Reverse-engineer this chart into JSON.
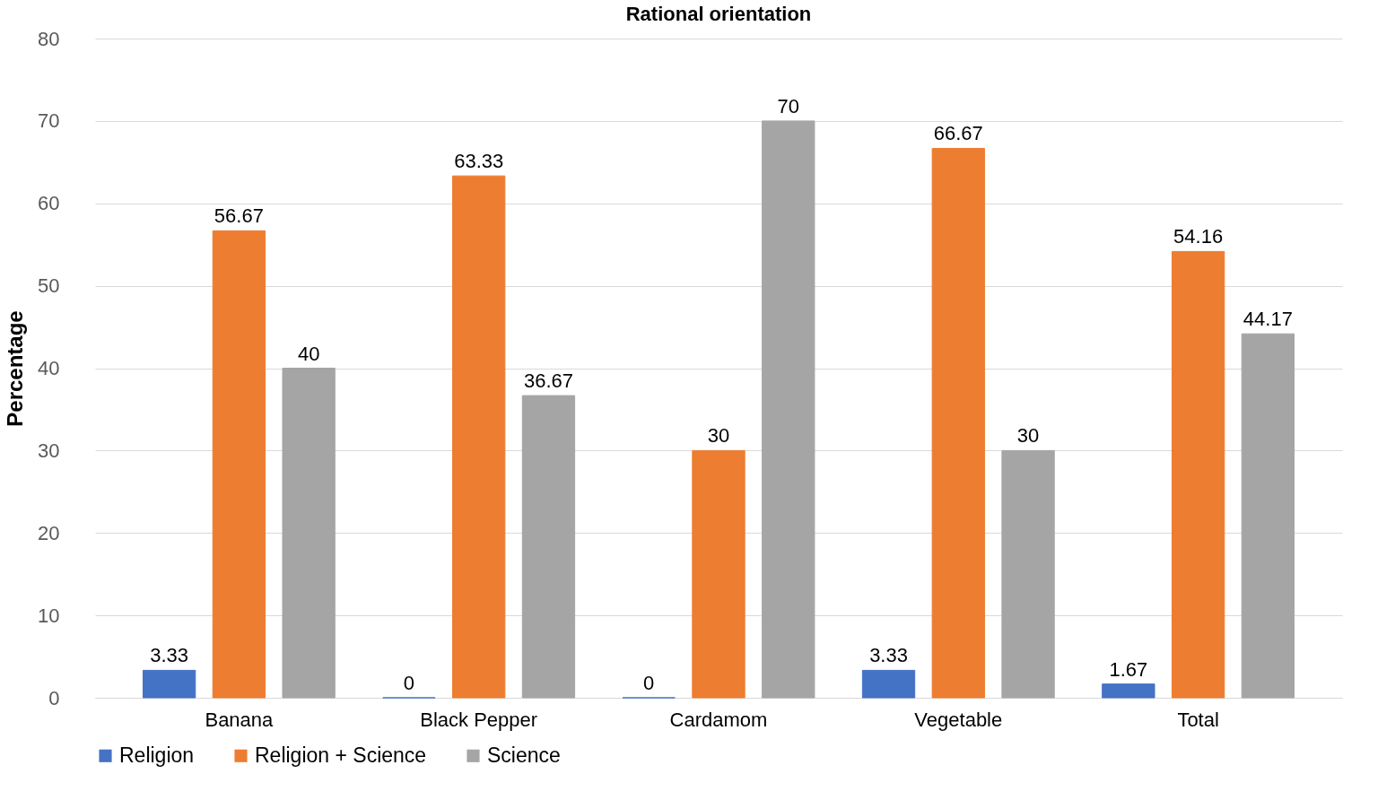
{
  "chart_data": {
    "type": "bar",
    "title": "Rational orientation",
    "ylabel": "Percentage",
    "categories": [
      "Banana",
      "Black Pepper",
      "Cardamom",
      "Vegetable",
      "Total"
    ],
    "series": [
      {
        "name": "Religion",
        "color": "#4472c4",
        "values": [
          3.33,
          0,
          0,
          3.33,
          1.67
        ]
      },
      {
        "name": "Religion + Science",
        "color": "#ed7d31",
        "values": [
          56.67,
          63.33,
          30,
          66.67,
          54.16
        ]
      },
      {
        "name": "Science",
        "color": "#a5a5a5",
        "values": [
          40,
          36.67,
          70,
          30,
          44.17
        ]
      }
    ],
    "ylim": [
      0,
      80
    ],
    "yticks": [
      0,
      10,
      20,
      30,
      40,
      50,
      60,
      70,
      80
    ],
    "grid": "y",
    "legend": "bottom",
    "data_labels": true
  }
}
